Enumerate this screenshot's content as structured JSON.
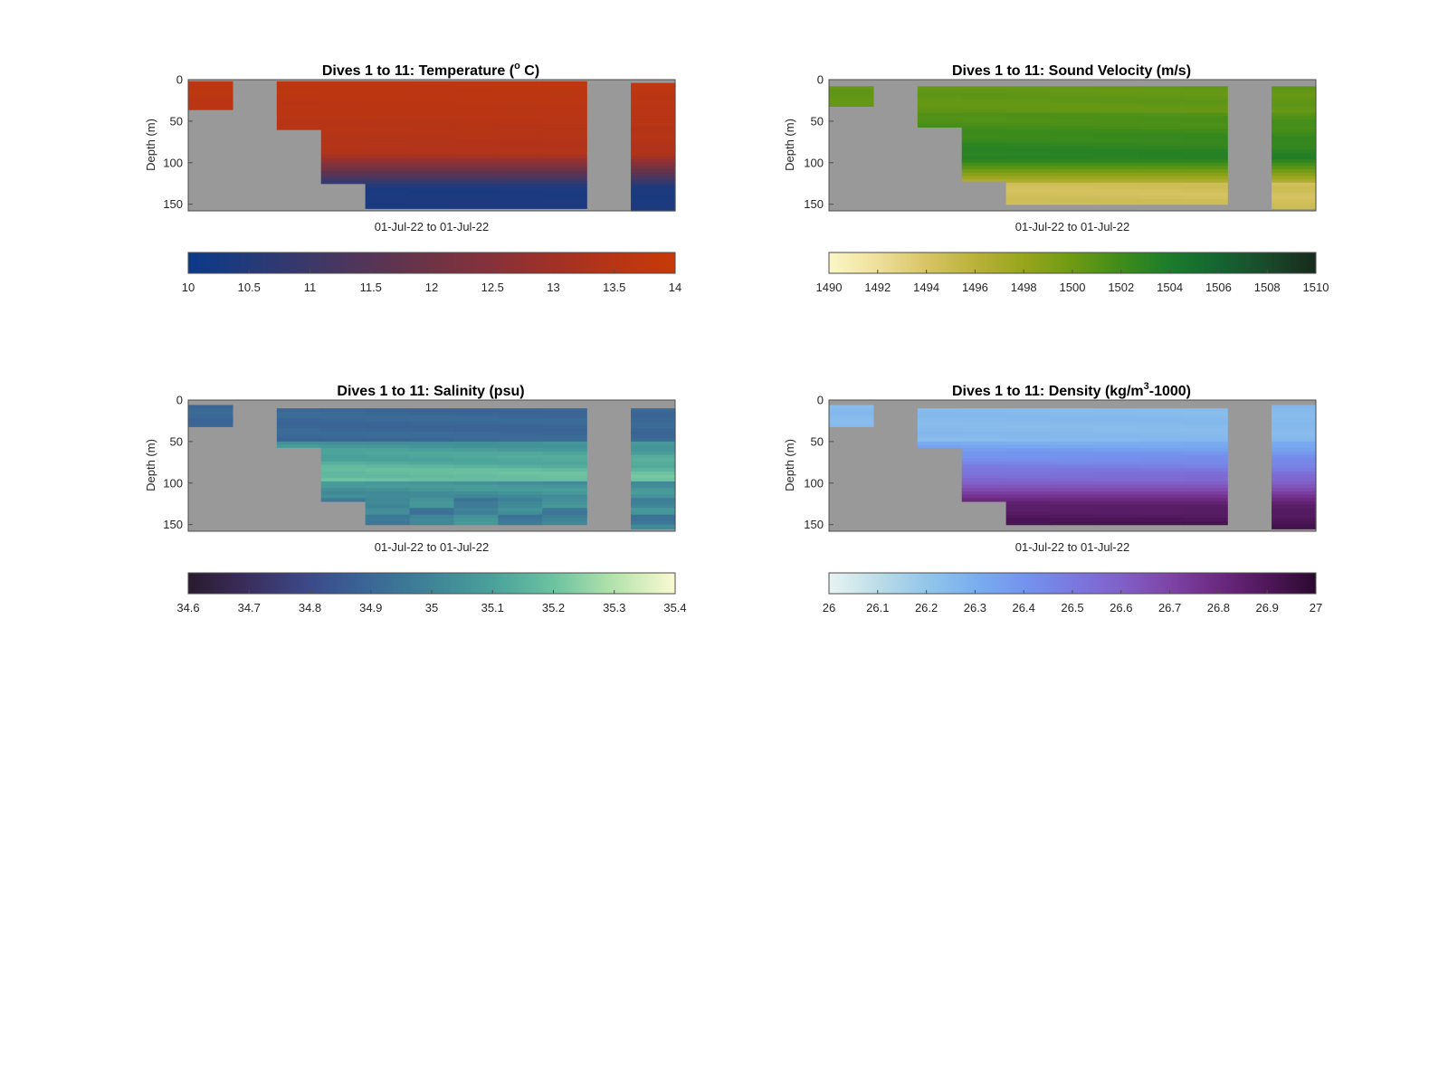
{
  "chart_data": [
    {
      "type": "heatmap",
      "title": "Dives 1 to 11: Temperature (",
      "title_sup": "o",
      "title_end": " C)",
      "ylabel": "Depth (m)",
      "xlabel": "01-Jul-22 to 01-Jul-22",
      "ylim": [
        0,
        158
      ],
      "yticks": [
        "0",
        "50",
        "100",
        "150"
      ],
      "ytick_values": [
        0,
        50,
        100,
        150
      ],
      "x_dives": [
        1,
        2,
        3,
        4,
        5,
        6,
        7,
        8,
        9,
        10,
        11
      ],
      "profile_depth_max": [
        36,
        0,
        60,
        125,
        155,
        155,
        155,
        155,
        155,
        0,
        158
      ],
      "profile_depth_min": [
        2,
        0,
        2,
        2,
        2,
        2,
        2,
        2,
        2,
        0,
        4
      ],
      "field": "temperature",
      "colorbar": {
        "min": 10,
        "max": 14,
        "ticks": [
          "10",
          "10.5",
          "11",
          "11.5",
          "12",
          "12.5",
          "13",
          "13.5",
          "14"
        ],
        "colors": [
          "#0a3a8a",
          "#233a7a",
          "#3c3868",
          "#553556",
          "#6e3345",
          "#87313a",
          "#a03126",
          "#b83515",
          "#c63a08"
        ]
      }
    },
    {
      "type": "heatmap",
      "title": "Dives 1 to 11: Sound Velocity (m/s)",
      "ylabel": "Depth (m)",
      "xlabel": "01-Jul-22 to 01-Jul-22",
      "ylim": [
        0,
        158
      ],
      "yticks": [
        "0",
        "50",
        "100",
        "150"
      ],
      "ytick_values": [
        0,
        50,
        100,
        150
      ],
      "x_dives": [
        1,
        2,
        3,
        4,
        5,
        6,
        7,
        8,
        9,
        10,
        11
      ],
      "profile_depth_max": [
        32,
        0,
        57,
        122,
        150,
        150,
        150,
        150,
        150,
        0,
        155
      ],
      "profile_depth_min": [
        8,
        0,
        8,
        8,
        8,
        8,
        8,
        8,
        8,
        0,
        8
      ],
      "field": "sound",
      "colorbar": {
        "min": 1490,
        "max": 1510,
        "ticks": [
          "1490",
          "1492",
          "1494",
          "1496",
          "1498",
          "1500",
          "1502",
          "1504",
          "1506",
          "1508",
          "1510"
        ],
        "colors": [
          "#fbf7c7",
          "#ede09a",
          "#d8c466",
          "#b9b23a",
          "#97a51c",
          "#6e9a14",
          "#3f8c1a",
          "#1b7c2b",
          "#156432",
          "#1a4a2a",
          "#172a1c"
        ]
      }
    },
    {
      "type": "heatmap",
      "title": "Dives 1 to 11: Salinity (psu)",
      "ylabel": "Depth (m)",
      "xlabel": "01-Jul-22 to 01-Jul-22",
      "ylim": [
        0,
        158
      ],
      "yticks": [
        "0",
        "50",
        "100",
        "150"
      ],
      "ytick_values": [
        0,
        50,
        100,
        150
      ],
      "x_dives": [
        1,
        2,
        3,
        4,
        5,
        6,
        7,
        8,
        9,
        10,
        11
      ],
      "profile_depth_max": [
        32,
        0,
        57,
        122,
        150,
        150,
        150,
        150,
        150,
        0,
        155
      ],
      "profile_depth_min": [
        6,
        0,
        10,
        10,
        10,
        10,
        10,
        10,
        10,
        0,
        10
      ],
      "field": "salinity",
      "colorbar": {
        "min": 34.6,
        "max": 35.4,
        "ticks": [
          "34.6",
          "34.7",
          "34.8",
          "34.9",
          "35",
          "35.1",
          "35.2",
          "35.3",
          "35.4"
        ],
        "colors": [
          "#2a1a2e",
          "#3a2f5e",
          "#3c4a8a",
          "#3a6896",
          "#3f8497",
          "#4aa19a",
          "#6cc2a0",
          "#b5e3ad",
          "#fbfad2"
        ]
      }
    },
    {
      "type": "heatmap",
      "title": "Dives 1 to 11: Density (kg/m",
      "title_sup": "3",
      "title_end": "-1000)",
      "ylabel": "Depth (m)",
      "xlabel": "01-Jul-22 to 01-Jul-22",
      "ylim": [
        0,
        158
      ],
      "yticks": [
        "0",
        "50",
        "100",
        "150"
      ],
      "ytick_values": [
        0,
        50,
        100,
        150
      ],
      "x_dives": [
        1,
        2,
        3,
        4,
        5,
        6,
        7,
        8,
        9,
        10,
        11
      ],
      "profile_depth_max": [
        32,
        0,
        57,
        122,
        150,
        150,
        150,
        150,
        150,
        0,
        155
      ],
      "profile_depth_min": [
        6,
        0,
        10,
        10,
        10,
        10,
        10,
        10,
        10,
        0,
        6
      ],
      "field": "density",
      "colorbar": {
        "min": 26,
        "max": 27,
        "ticks": [
          "26",
          "26.1",
          "26.2",
          "26.3",
          "26.4",
          "26.5",
          "26.6",
          "26.7",
          "26.8",
          "26.9",
          "27"
        ],
        "colors": [
          "#e9f4f2",
          "#bcdde8",
          "#93c6ea",
          "#7aaeef",
          "#7394ee",
          "#7a79e0",
          "#8060c8",
          "#7e44a6",
          "#6b2a80",
          "#4f175a",
          "#2a0a2e"
        ]
      }
    }
  ],
  "colors": {
    "missing_data": "#999999",
    "axis": "#4d4d4d"
  }
}
